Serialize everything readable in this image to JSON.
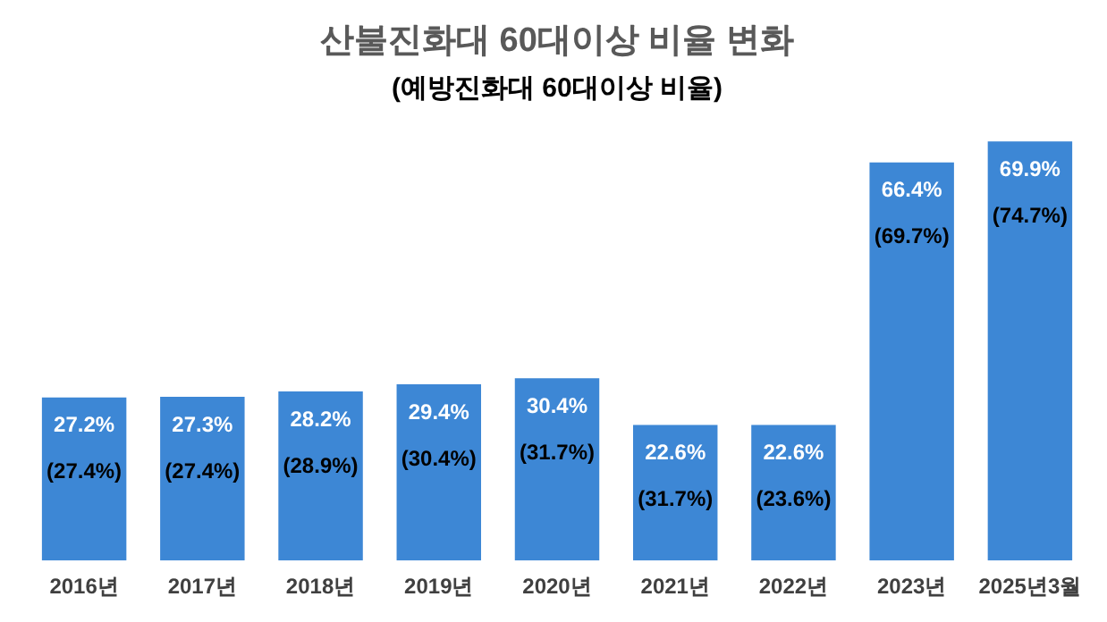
{
  "chart_data": {
    "type": "bar",
    "title": "산불진화대 60대이상 비율 변화",
    "subtitle": "(예방진화대 60대이상 비율)",
    "categories": [
      "2016년",
      "2017년",
      "2018년",
      "2019년",
      "2020년",
      "2021년",
      "2022년",
      "2023년",
      "2025년3월"
    ],
    "values": [
      27.2,
      27.3,
      28.2,
      29.4,
      30.4,
      22.6,
      22.6,
      66.4,
      69.9
    ],
    "value_labels": [
      "27.2%",
      "27.3%",
      "28.2%",
      "29.4%",
      "30.4%",
      "22.6%",
      "22.6%",
      "66.4%",
      "69.9%"
    ],
    "color": "#3d87d5",
    "tick_labels": "x",
    "grid": false,
    "legend": false,
    "annotations": [
      "(27.4%)",
      "(27.4%)",
      "(28.9%)",
      "(30.4%)",
      "(31.7%)",
      "(31.7%)",
      "(23.6%)",
      "(69.7%)",
      "(74.7%)"
    ]
  }
}
